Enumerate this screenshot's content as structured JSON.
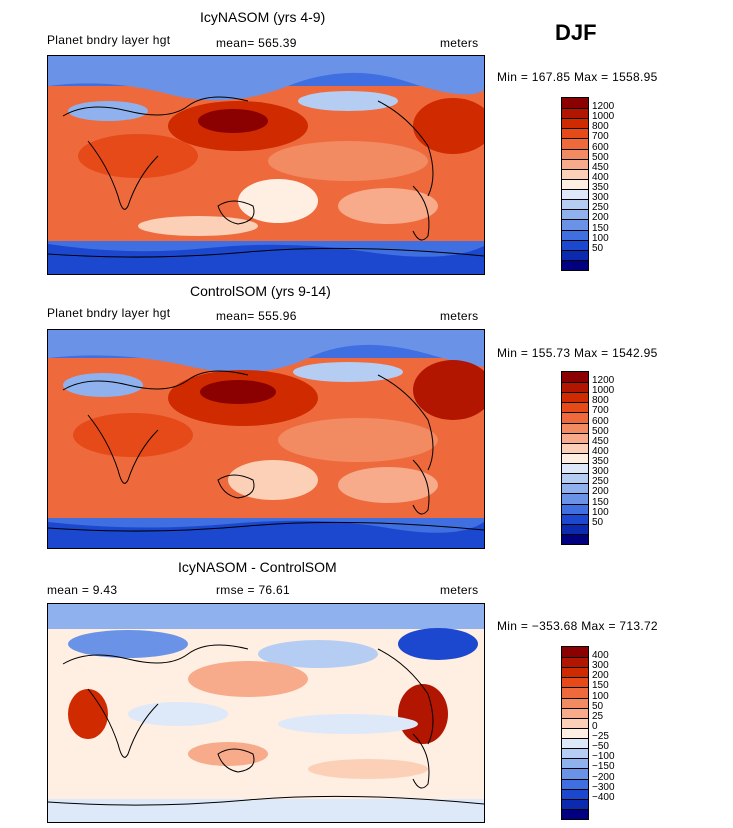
{
  "season": "DJF",
  "chart_data": [
    {
      "type": "heatmap",
      "title": "IcyNASOM (yrs 4-9)",
      "left_label": "Planet bndry layer hgt",
      "stat_text": "mean= 565.39",
      "units": "meters",
      "minmax_text": "Min = 167.85  Max = 1558.95",
      "colorbar": {
        "levels": [
          "1200",
          "1000",
          "800",
          "700",
          "600",
          "500",
          "450",
          "400",
          "350",
          "300",
          "250",
          "200",
          "150",
          "100",
          "50"
        ],
        "colors": [
          "#8b0000",
          "#b21500",
          "#cf2a00",
          "#e64a19",
          "#ee6a3c",
          "#f28a62",
          "#f7ab8b",
          "#fbd0b6",
          "#ffeee2",
          "#dde8f8",
          "#b5cdf3",
          "#8fb2ee",
          "#6a93e8",
          "#3f6fe0",
          "#1c47cf",
          "#0c2ab0",
          "#000080"
        ]
      }
    },
    {
      "type": "heatmap",
      "title": "ControlSOM (yrs 9-14)",
      "left_label": "Planet bndry layer hgt",
      "stat_text": "mean= 555.96",
      "units": "meters",
      "minmax_text": "Min = 155.73  Max = 1542.95",
      "colorbar": {
        "levels": [
          "1200",
          "1000",
          "800",
          "700",
          "600",
          "500",
          "450",
          "400",
          "350",
          "300",
          "250",
          "200",
          "150",
          "100",
          "50"
        ],
        "colors": [
          "#8b0000",
          "#b21500",
          "#cf2a00",
          "#e64a19",
          "#ee6a3c",
          "#f28a62",
          "#f7ab8b",
          "#fbd0b6",
          "#ffeee2",
          "#dde8f8",
          "#b5cdf3",
          "#8fb2ee",
          "#6a93e8",
          "#3f6fe0",
          "#1c47cf",
          "#0c2ab0",
          "#000080"
        ]
      }
    },
    {
      "type": "heatmap",
      "title": "IcyNASOM - ControlSOM",
      "left_label": "mean =    9.43",
      "stat_text": "rmse =   76.61",
      "units": "meters",
      "minmax_text": "Min = −353.68  Max = 713.72",
      "colorbar": {
        "levels": [
          "400",
          "300",
          "200",
          "150",
          "100",
          "50",
          "25",
          "0",
          "−25",
          "−50",
          "−100",
          "−150",
          "−200",
          "−300",
          "−400"
        ],
        "colors": [
          "#8b0000",
          "#b21500",
          "#cf2a00",
          "#e64a19",
          "#ee6a3c",
          "#f28a62",
          "#f7ab8b",
          "#fbd0b6",
          "#ffeee2",
          "#dde8f8",
          "#b5cdf3",
          "#8fb2ee",
          "#6a93e8",
          "#3f6fe0",
          "#1c47cf",
          "#0c2ab0",
          "#000080"
        ]
      }
    }
  ]
}
